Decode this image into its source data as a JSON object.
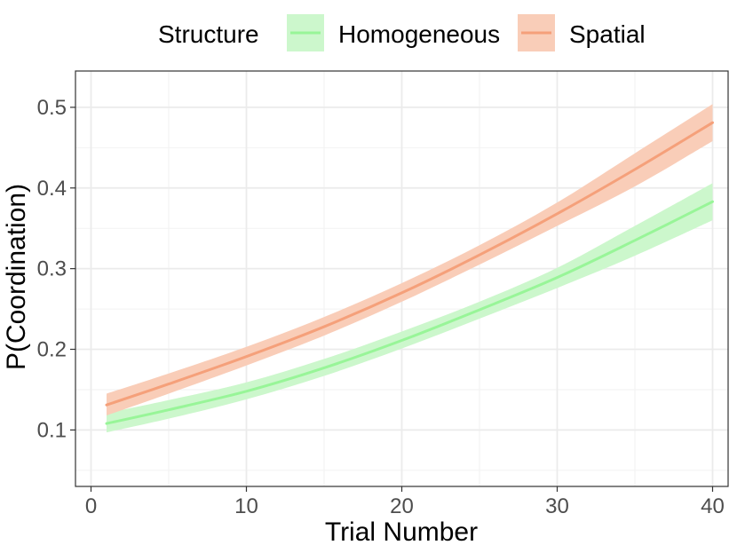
{
  "chart_data": {
    "type": "line",
    "xlabel": "Trial Number",
    "ylabel": "P(Coordination)",
    "xlim": [
      -1,
      41
    ],
    "ylim": [
      0.03,
      0.545
    ],
    "x_ticks": [
      0,
      10,
      20,
      30,
      40
    ],
    "x_tick_labels": [
      "0",
      "10",
      "20",
      "30",
      "40"
    ],
    "y_ticks": [
      0.1,
      0.2,
      0.3,
      0.4,
      0.5
    ],
    "y_tick_labels": [
      "0.1",
      "0.2",
      "0.3",
      "0.4",
      "0.5"
    ],
    "grid": true,
    "legend": {
      "title": "Structure",
      "position": "top"
    },
    "series": [
      {
        "name": "Homogeneous",
        "color": "#98f598",
        "fill": "#ccf7cc",
        "x": [
          1,
          5,
          10,
          15,
          20,
          25,
          30,
          35,
          40
        ],
        "y": [
          0.108,
          0.125,
          0.148,
          0.177,
          0.211,
          0.249,
          0.289,
          0.335,
          0.383
        ],
        "lower": [
          0.097,
          0.114,
          0.138,
          0.167,
          0.201,
          0.238,
          0.276,
          0.316,
          0.36
        ],
        "upper": [
          0.121,
          0.137,
          0.159,
          0.188,
          0.222,
          0.259,
          0.301,
          0.353,
          0.406
        ]
      },
      {
        "name": "Spatial",
        "color": "#f5a07a",
        "fill": "#f9cdb8",
        "x": [
          1,
          5,
          10,
          15,
          20,
          25,
          30,
          35,
          40
        ],
        "y": [
          0.131,
          0.157,
          0.191,
          0.228,
          0.27,
          0.317,
          0.368,
          0.423,
          0.481
        ],
        "lower": [
          0.118,
          0.145,
          0.18,
          0.217,
          0.259,
          0.305,
          0.353,
          0.402,
          0.458
        ],
        "upper": [
          0.145,
          0.17,
          0.203,
          0.24,
          0.282,
          0.329,
          0.382,
          0.443,
          0.504
        ]
      }
    ]
  }
}
